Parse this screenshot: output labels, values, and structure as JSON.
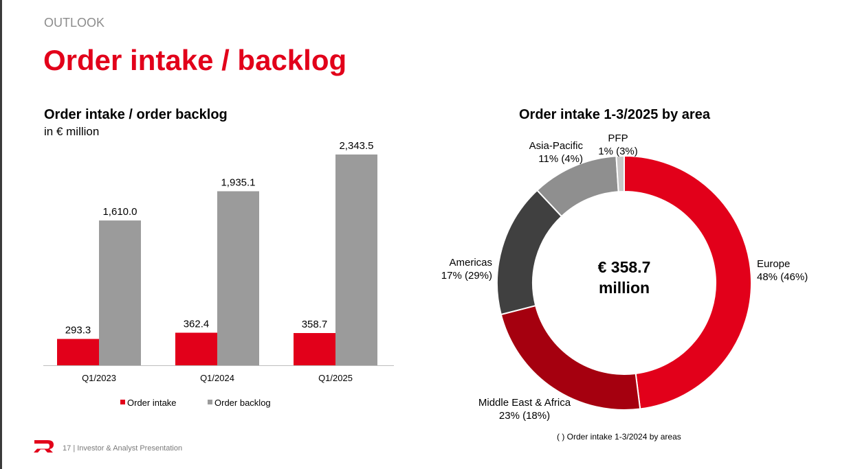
{
  "header": {
    "section_label": "OUTLOOK",
    "title": "Order intake / backlog"
  },
  "footer": {
    "page_number": "17",
    "separator": "|",
    "presentation_name": "Investor & Analyst Presentation",
    "logo_icon": "brand-logo-icon"
  },
  "colors": {
    "brand_red": "#e2001a",
    "backlog_gray": "#9b9b9b",
    "europe": "#e2001a",
    "middle_east_africa": "#a5000f",
    "americas": "#404040",
    "asia_pacific": "#8f8f8f",
    "pfp": "#c8c8c8"
  },
  "chart_data": [
    {
      "type": "bar",
      "title": "Order intake / order backlog",
      "subtitle": "in € million",
      "categories": [
        "Q1/2023",
        "Q1/2024",
        "Q1/2025"
      ],
      "series": [
        {
          "name": "Order intake",
          "values": [
            293.3,
            362.4,
            358.7
          ],
          "labels": [
            "293.3",
            "362.4",
            "358.7"
          ]
        },
        {
          "name": "Order backlog",
          "values": [
            1610.0,
            1935.1,
            2343.5
          ],
          "labels": [
            "1,610.0",
            "1,935.1",
            "2,343.5"
          ]
        }
      ],
      "ylim": [
        0,
        2343.5
      ],
      "grid": false,
      "legend": "bottom"
    },
    {
      "type": "pie",
      "title": "Order intake 1-3/2025 by area",
      "center_text": [
        "€ 358.7",
        "million"
      ],
      "slices": [
        {
          "name": "Europe",
          "value": 48,
          "label": "48% (46%)"
        },
        {
          "name": "Middle East & Africa",
          "value": 23,
          "label": "23% (18%)"
        },
        {
          "name": "Americas",
          "value": 17,
          "label": "17% (29%)"
        },
        {
          "name": "Asia-Pacific",
          "value": 11,
          "label": "11% (4%)"
        },
        {
          "name": "PFP",
          "value": 1,
          "label": "1% (3%)"
        }
      ],
      "footnote": "( ) Order intake 1-3/2024 by areas"
    }
  ]
}
